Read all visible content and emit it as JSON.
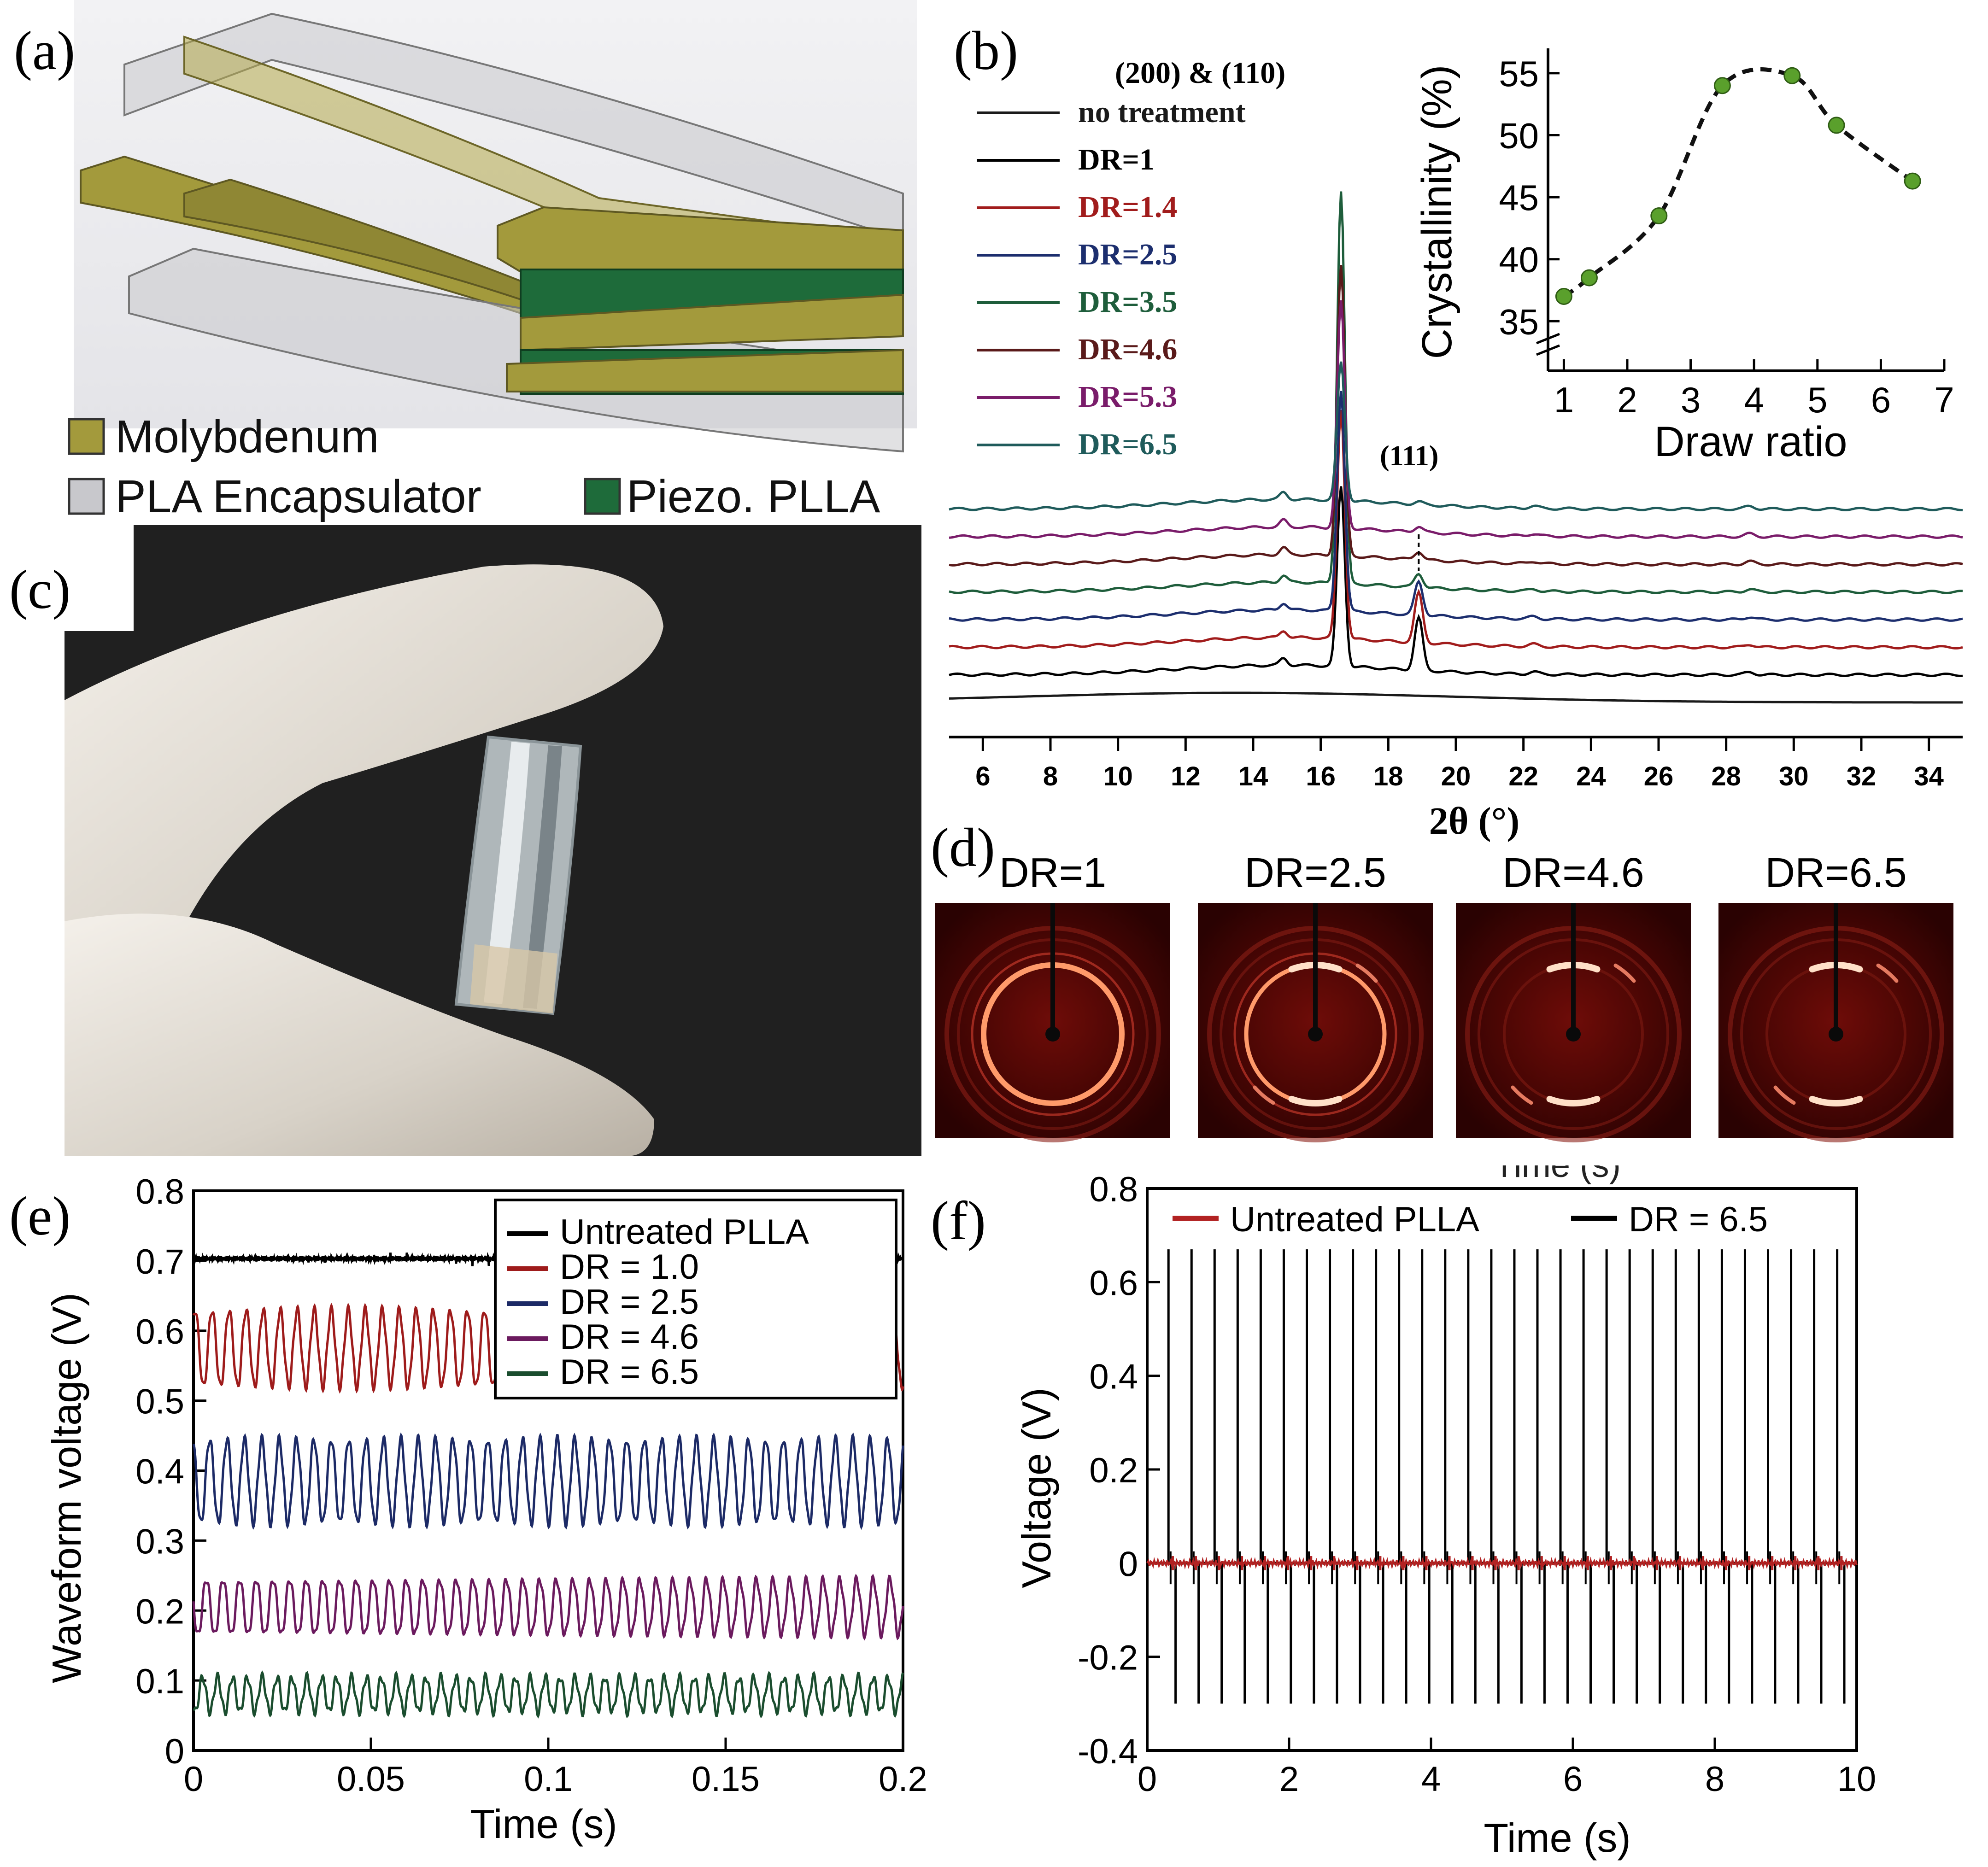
{
  "panels": {
    "a": {
      "label": "(a)",
      "legend": [
        {
          "text": "Molybdenum",
          "color": "#a39a3c"
        },
        {
          "text": "PLA Encapsulator",
          "color": "#c8c8cc"
        },
        {
          "text": "Piezo. PLLA",
          "color": "#1e6b3a"
        }
      ]
    },
    "b": {
      "label": "(b)"
    },
    "c": {
      "label": "(c)"
    },
    "d": {
      "label": "(d)",
      "images": [
        {
          "title": "DR=1",
          "pattern": "full-ring"
        },
        {
          "title": "DR=2.5",
          "pattern": "full-ring-arcs"
        },
        {
          "title": "DR=4.6",
          "pattern": "arcs"
        },
        {
          "title": "DR=6.5",
          "pattern": "arcs"
        }
      ]
    },
    "e": {
      "label": "(e)"
    },
    "f": {
      "label": "(f)",
      "clipped_text": "Time (s)"
    }
  },
  "chart_data": [
    {
      "id": "b-xrd",
      "type": "line",
      "xlabel": "2θ (°)",
      "ylabel": "",
      "xlim": [
        5,
        35
      ],
      "xticks": [
        6,
        8,
        10,
        12,
        14,
        16,
        18,
        20,
        22,
        24,
        26,
        28,
        30,
        32,
        34
      ],
      "annotations": [
        "(200) & (110)",
        "(111)"
      ],
      "series": [
        {
          "name": "no treatment",
          "color": "#1a1a1a",
          "offset": 0,
          "peak1": 0.3,
          "peak2": 0,
          "hump": 0.35
        },
        {
          "name": "DR=1",
          "color": "#000000",
          "offset": 1,
          "peak1": 6.5,
          "peak2": 1.9
        },
        {
          "name": "DR=1.4",
          "color": "#a11c1c",
          "offset": 2,
          "peak1": 8.3,
          "peak2": 1.8
        },
        {
          "name": "DR=2.5",
          "color": "#1c2e6e",
          "offset": 3,
          "peak1": 8.0,
          "peak2": 1.2
        },
        {
          "name": "DR=3.5",
          "color": "#1e5d3b",
          "offset": 4,
          "peak1": 14.2,
          "peak2": 0.5
        },
        {
          "name": "DR=4.6",
          "color": "#5a1a1a",
          "offset": 5,
          "peak1": 10.5,
          "peak2": 0.3
        },
        {
          "name": "DR=5.3",
          "color": "#7a1c6a",
          "offset": 6,
          "peak1": 8.2,
          "peak2": 0.2
        },
        {
          "name": "DR=6.5",
          "color": "#1f5b5b",
          "offset": 7,
          "peak1": 5.0,
          "peak2": 0.1
        }
      ]
    },
    {
      "id": "b-inset",
      "type": "scatter",
      "xlabel": "Draw ratio",
      "ylabel": "Crystallinity (%)",
      "xlim": [
        0.75,
        7
      ],
      "ylim": [
        31,
        57
      ],
      "xticks": [
        1,
        2,
        3,
        4,
        5,
        6,
        7
      ],
      "yticks": [
        35,
        40,
        45,
        50,
        55
      ],
      "axis_break": true,
      "x": [
        1.0,
        1.4,
        2.5,
        3.5,
        4.6,
        5.3,
        6.5
      ],
      "y": [
        37.0,
        38.5,
        43.5,
        54.0,
        54.8,
        50.8,
        46.3
      ],
      "marker_color": "#5aa02c",
      "fit": "dashed"
    },
    {
      "id": "e-waveform",
      "type": "line",
      "xlabel": "Time (s)",
      "ylabel": "Waveform voltage (V)",
      "xlim": [
        0,
        0.2
      ],
      "ylim": [
        0,
        0.8
      ],
      "xticks": [
        0,
        0.05,
        0.1,
        0.15,
        0.2
      ],
      "xtick_labels": [
        "0",
        "0.05",
        "0.1",
        "0.15",
        "0.2"
      ],
      "yticks": [
        0,
        0.1,
        0.2,
        0.3,
        0.4,
        0.5,
        0.6,
        0.7,
        0.8
      ],
      "ytick_labels": [
        "0",
        "0.1",
        "0.2",
        "0.3",
        "0.4",
        "0.5",
        "0.6",
        "0.7",
        "0.8"
      ],
      "series": [
        {
          "name": "Untreated PLLA",
          "color": "#000000",
          "center": 0.703,
          "amplitude": 0.004,
          "period": 0.0042
        },
        {
          "name": "DR = 1.0",
          "color": "#9e1b1b",
          "center": 0.575,
          "amplitude": 0.055,
          "period": 0.0048
        },
        {
          "name": "DR = 2.5",
          "color": "#1c2a66",
          "center": 0.385,
          "amplitude": 0.06,
          "period": 0.0049
        },
        {
          "name": "DR = 4.6",
          "color": "#6b1a5e",
          "center": 0.205,
          "amplitude": 0.04,
          "period": 0.0047
        },
        {
          "name": "DR = 6.5",
          "color": "#1a4d2e",
          "center": 0.08,
          "amplitude": 0.025,
          "period": 0.0042
        }
      ]
    },
    {
      "id": "f-voltage",
      "type": "line",
      "xlabel": "Time (s)",
      "ylabel": "Voltage (V)",
      "xlim": [
        0,
        10
      ],
      "ylim": [
        -0.4,
        0.8
      ],
      "xticks": [
        0,
        2,
        4,
        6,
        8,
        10
      ],
      "yticks": [
        -0.4,
        -0.2,
        0,
        0.2,
        0.4,
        0.6,
        0.8
      ],
      "ytick_labels": [
        "-0.4",
        "-0.2",
        "0",
        "0.2",
        "0.4",
        "0.6",
        "0.8"
      ],
      "series": [
        {
          "name": "Untreated PLLA",
          "color": "#b22222",
          "pulse_max": 0.015,
          "pulse_min": -0.015
        },
        {
          "name": "DR = 6.5",
          "color": "#000000",
          "pulse_max": 0.67,
          "pulse_min": -0.3
        }
      ],
      "pulse_start": 0.3,
      "pulse_period": 0.325
    }
  ]
}
